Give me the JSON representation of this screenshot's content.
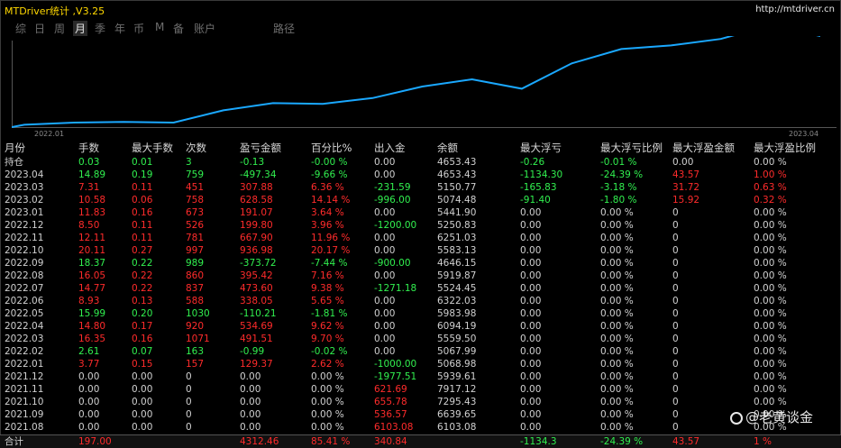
{
  "title": "MTDriver统计 ,V3.25",
  "url": "http://mtdriver.cn",
  "tabs": [
    "综",
    "日",
    "周",
    "月",
    "季",
    "年",
    "币",
    "M",
    "备",
    "账户",
    "路径"
  ],
  "active_tab": 3,
  "chart": {
    "start_label": "2022.01",
    "end_label": "2023.04",
    "line_color": "#1aa8ff",
    "values": [
      2,
      5,
      6,
      5,
      22,
      32,
      31,
      39,
      55,
      65,
      52,
      87,
      107,
      112,
      121,
      140,
      125
    ]
  },
  "columns": [
    "月份",
    "手数",
    "最大手数",
    "次数",
    "盈亏金额",
    "百分比%",
    "出入金",
    "余额",
    "最大浮亏",
    "最大浮亏比例",
    "最大浮盈金额",
    "最大浮盈比例"
  ],
  "rows": [
    [
      "持仓",
      "0.03",
      "0.01",
      "3",
      "-0.13",
      "-0.00 %",
      "0.00",
      "4653.43",
      "-0.26",
      "-0.01 %",
      "0.00",
      "0.00 %"
    ],
    [
      "2023.04",
      "14.89",
      "0.19",
      "759",
      "-497.34",
      "-9.66 %",
      "0.00",
      "4653.43",
      "-1134.30",
      "-24.39 %",
      "43.57",
      "1.00 %"
    ],
    [
      "2023.03",
      "7.31",
      "0.11",
      "451",
      "307.88",
      "6.36 %",
      "-231.59",
      "5150.77",
      "-165.83",
      "-3.18 %",
      "31.72",
      "0.63 %"
    ],
    [
      "2023.02",
      "10.58",
      "0.06",
      "758",
      "628.58",
      "14.14 %",
      "-996.00",
      "5074.48",
      "-91.40",
      "-1.80 %",
      "15.92",
      "0.32 %"
    ],
    [
      "2023.01",
      "11.83",
      "0.16",
      "673",
      "191.07",
      "3.64 %",
      "0.00",
      "5441.90",
      "0.00",
      "0.00 %",
      "0",
      "0.00 %"
    ],
    [
      "2022.12",
      "8.50",
      "0.11",
      "526",
      "199.80",
      "3.96 %",
      "-1200.00",
      "5250.83",
      "0.00",
      "0.00 %",
      "0",
      "0.00 %"
    ],
    [
      "2022.11",
      "12.11",
      "0.11",
      "781",
      "667.90",
      "11.96 %",
      "0.00",
      "6251.03",
      "0.00",
      "0.00 %",
      "0",
      "0.00 %"
    ],
    [
      "2022.10",
      "20.11",
      "0.27",
      "997",
      "936.98",
      "20.17 %",
      "0.00",
      "5583.13",
      "0.00",
      "0.00 %",
      "0",
      "0.00 %"
    ],
    [
      "2022.09",
      "18.37",
      "0.22",
      "989",
      "-373.72",
      "-7.44 %",
      "-900.00",
      "4646.15",
      "0.00",
      "0.00 %",
      "0",
      "0.00 %"
    ],
    [
      "2022.08",
      "16.05",
      "0.22",
      "860",
      "395.42",
      "7.16 %",
      "0.00",
      "5919.87",
      "0.00",
      "0.00 %",
      "0",
      "0.00 %"
    ],
    [
      "2022.07",
      "14.77",
      "0.22",
      "837",
      "473.60",
      "9.38 %",
      "-1271.18",
      "5524.45",
      "0.00",
      "0.00 %",
      "0",
      "0.00 %"
    ],
    [
      "2022.06",
      "8.93",
      "0.13",
      "588",
      "338.05",
      "5.65 %",
      "0.00",
      "6322.03",
      "0.00",
      "0.00 %",
      "0",
      "0.00 %"
    ],
    [
      "2022.05",
      "15.99",
      "0.20",
      "1030",
      "-110.21",
      "-1.81 %",
      "0.00",
      "5983.98",
      "0.00",
      "0.00 %",
      "0",
      "0.00 %"
    ],
    [
      "2022.04",
      "14.80",
      "0.17",
      "920",
      "534.69",
      "9.62 %",
      "0.00",
      "6094.19",
      "0.00",
      "0.00 %",
      "0",
      "0.00 %"
    ],
    [
      "2022.03",
      "16.35",
      "0.16",
      "1071",
      "491.51",
      "9.70 %",
      "0.00",
      "5559.50",
      "0.00",
      "0.00 %",
      "0",
      "0.00 %"
    ],
    [
      "2022.02",
      "2.61",
      "0.07",
      "163",
      "-0.99",
      "-0.02 %",
      "0.00",
      "5067.99",
      "0.00",
      "0.00 %",
      "0",
      "0.00 %"
    ],
    [
      "2022.01",
      "3.77",
      "0.15",
      "157",
      "129.37",
      "2.62 %",
      "-1000.00",
      "5068.98",
      "0.00",
      "0.00 %",
      "0",
      "0.00 %"
    ],
    [
      "2021.12",
      "0.00",
      "0.00",
      "0",
      "0.00",
      "0.00 %",
      "-1977.51",
      "5939.61",
      "0.00",
      "0.00 %",
      "0",
      "0.00 %"
    ],
    [
      "2021.11",
      "0.00",
      "0.00",
      "0",
      "0.00",
      "0.00 %",
      "621.69",
      "7917.12",
      "0.00",
      "0.00 %",
      "0",
      "0.00 %"
    ],
    [
      "2021.10",
      "0.00",
      "0.00",
      "0",
      "0.00",
      "0.00 %",
      "655.78",
      "7295.43",
      "0.00",
      "0.00 %",
      "0",
      "0.00 %"
    ],
    [
      "2021.09",
      "0.00",
      "0.00",
      "0",
      "0.00",
      "0.00 %",
      "536.57",
      "6639.65",
      "0.00",
      "0.00 %",
      "0",
      "0.00 %"
    ],
    [
      "2021.08",
      "0.00",
      "0.00",
      "0",
      "0.00",
      "0.00 %",
      "6103.08",
      "6103.08",
      "0.00",
      "0.00 %",
      "0",
      "0.00 %"
    ]
  ],
  "total": [
    "合计",
    "197.00",
    "",
    "",
    "4312.46",
    "85.41 %",
    "340.84",
    "",
    "-1134.3",
    "-24.39 %",
    "43.57",
    "1 %"
  ],
  "watermark": "@老黄谈金"
}
